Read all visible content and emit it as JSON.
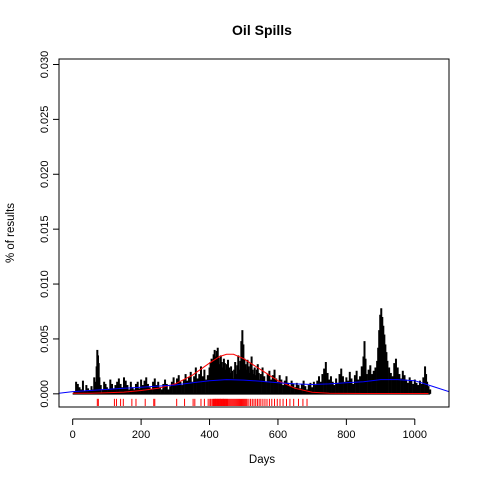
{
  "chart_data": {
    "type": "bar",
    "title": "Oil Spills",
    "xlabel": "Days",
    "ylabel": "% of results",
    "xlim": [
      -40,
      1100
    ],
    "ylim": [
      -0.0012,
      0.0305
    ],
    "x_ticks": [
      0,
      200,
      400,
      600,
      800,
      1000
    ],
    "x_tick_labels": [
      "0",
      "200",
      "400",
      "600",
      "800",
      "1000"
    ],
    "y_ticks": [
      0.0,
      0.005,
      0.01,
      0.015,
      0.02,
      0.025,
      0.03
    ],
    "y_tick_labels": [
      "0.000",
      "0.005",
      "0.010",
      "0.015",
      "0.020",
      "0.025",
      "0.030"
    ],
    "grid": false,
    "legend": "none",
    "colors": {
      "bars": "#000000",
      "red_curve": "#ff0000",
      "blue_curve": "#0000ff",
      "rug": "#ff0000"
    },
    "series": [
      {
        "kind": "spikes",
        "color": "#000000",
        "points": [
          [
            5,
            0.0002
          ],
          [
            10,
            0.0011
          ],
          [
            15,
            0.0009
          ],
          [
            20,
            0.0006
          ],
          [
            25,
            0.0004
          ],
          [
            30,
            0.0012
          ],
          [
            35,
            0.0003
          ],
          [
            40,
            0.0008
          ],
          [
            45,
            0.0005
          ],
          [
            50,
            0.0003
          ],
          [
            55,
            0.0007
          ],
          [
            60,
            0.0004
          ],
          [
            63,
            0.0015
          ],
          [
            67,
            0.0011
          ],
          [
            70,
            0.0025
          ],
          [
            72,
            0.004
          ],
          [
            74,
            0.0035
          ],
          [
            76,
            0.0028
          ],
          [
            78,
            0.0015
          ],
          [
            82,
            0.0008
          ],
          [
            88,
            0.0004
          ],
          [
            92,
            0.0011
          ],
          [
            96,
            0.0009
          ],
          [
            100,
            0.0006
          ],
          [
            105,
            0.0004
          ],
          [
            110,
            0.0013
          ],
          [
            115,
            0.0009
          ],
          [
            120,
            0.0005
          ],
          [
            125,
            0.0008
          ],
          [
            130,
            0.0011
          ],
          [
            135,
            0.0014
          ],
          [
            140,
            0.0009
          ],
          [
            145,
            0.0006
          ],
          [
            150,
            0.0015
          ],
          [
            155,
            0.0012
          ],
          [
            160,
            0.0008
          ],
          [
            165,
            0.0004
          ],
          [
            170,
            0.0011
          ],
          [
            175,
            0.0006
          ],
          [
            180,
            0.0004
          ],
          [
            185,
            0.0009
          ],
          [
            190,
            0.0011
          ],
          [
            195,
            0.0005
          ],
          [
            200,
            0.0013
          ],
          [
            205,
            0.0008
          ],
          [
            210,
            0.0012
          ],
          [
            215,
            0.0015
          ],
          [
            220,
            0.0009
          ],
          [
            225,
            0.0006
          ],
          [
            230,
            0.0004
          ],
          [
            235,
            0.0011
          ],
          [
            240,
            0.0014
          ],
          [
            245,
            0.0008
          ],
          [
            250,
            0.0011
          ],
          [
            255,
            0.0006
          ],
          [
            260,
            0.0004
          ],
          [
            265,
            0.0009
          ],
          [
            270,
            0.0013
          ],
          [
            275,
            0.0009
          ],
          [
            280,
            0.0004
          ],
          [
            285,
            0.0007
          ],
          [
            290,
            0.0011
          ],
          [
            295,
            0.0015
          ],
          [
            300,
            0.0009
          ],
          [
            305,
            0.0014
          ],
          [
            310,
            0.0017
          ],
          [
            315,
            0.0011
          ],
          [
            320,
            0.0008
          ],
          [
            325,
            0.0013
          ],
          [
            330,
            0.0018
          ],
          [
            335,
            0.0012
          ],
          [
            340,
            0.0015
          ],
          [
            345,
            0.002
          ],
          [
            350,
            0.0011
          ],
          [
            355,
            0.0016
          ],
          [
            360,
            0.0024
          ],
          [
            365,
            0.0014
          ],
          [
            370,
            0.0018
          ],
          [
            375,
            0.0025
          ],
          [
            380,
            0.0016
          ],
          [
            385,
            0.0022
          ],
          [
            390,
            0.0013
          ],
          [
            395,
            0.0017
          ],
          [
            400,
            0.0024
          ],
          [
            403,
            0.0029
          ],
          [
            406,
            0.0032
          ],
          [
            409,
            0.003
          ],
          [
            412,
            0.0036
          ],
          [
            415,
            0.004
          ],
          [
            418,
            0.0034
          ],
          [
            421,
            0.0039
          ],
          [
            424,
            0.0042
          ],
          [
            427,
            0.0033
          ],
          [
            430,
            0.0027
          ],
          [
            433,
            0.0035
          ],
          [
            436,
            0.0029
          ],
          [
            439,
            0.0024
          ],
          [
            442,
            0.0032
          ],
          [
            445,
            0.0028
          ],
          [
            448,
            0.0022
          ],
          [
            451,
            0.0027
          ],
          [
            454,
            0.0031
          ],
          [
            457,
            0.0024
          ],
          [
            460,
            0.0019
          ],
          [
            463,
            0.0025
          ],
          [
            466,
            0.0021
          ],
          [
            469,
            0.0014
          ],
          [
            472,
            0.0022
          ],
          [
            475,
            0.0029
          ],
          [
            478,
            0.0018
          ],
          [
            481,
            0.0026
          ],
          [
            484,
            0.0035
          ],
          [
            487,
            0.0022
          ],
          [
            490,
            0.003
          ],
          [
            493,
            0.0048
          ],
          [
            496,
            0.0058
          ],
          [
            499,
            0.0045
          ],
          [
            502,
            0.0032
          ],
          [
            505,
            0.0027
          ],
          [
            508,
            0.0022
          ],
          [
            511,
            0.0031
          ],
          [
            514,
            0.0025
          ],
          [
            517,
            0.0019
          ],
          [
            520,
            0.0028
          ],
          [
            523,
            0.0034
          ],
          [
            526,
            0.0022
          ],
          [
            529,
            0.0018
          ],
          [
            532,
            0.0024
          ],
          [
            535,
            0.0017
          ],
          [
            538,
            0.0022
          ],
          [
            541,
            0.0027
          ],
          [
            544,
            0.0019
          ],
          [
            547,
            0.0013
          ],
          [
            550,
            0.0018
          ],
          [
            555,
            0.0024
          ],
          [
            560,
            0.0016
          ],
          [
            565,
            0.0011
          ],
          [
            570,
            0.0018
          ],
          [
            575,
            0.0021
          ],
          [
            580,
            0.0013
          ],
          [
            585,
            0.0017
          ],
          [
            590,
            0.0022
          ],
          [
            595,
            0.0014
          ],
          [
            600,
            0.0011
          ],
          [
            605,
            0.0017
          ],
          [
            610,
            0.0013
          ],
          [
            615,
            0.0008
          ],
          [
            620,
            0.0012
          ],
          [
            625,
            0.0016
          ],
          [
            630,
            0.001
          ],
          [
            635,
            0.0007
          ],
          [
            640,
            0.0012
          ],
          [
            645,
            0.0009
          ],
          [
            650,
            0.0006
          ],
          [
            655,
            0.001
          ],
          [
            660,
            0.0008
          ],
          [
            665,
            0.0005
          ],
          [
            670,
            0.0009
          ],
          [
            675,
            0.0012
          ],
          [
            680,
            0.0007
          ],
          [
            685,
            0.0004
          ],
          [
            690,
            0.0008
          ],
          [
            695,
            0.001
          ],
          [
            700,
            0.0006
          ],
          [
            705,
            0.0011
          ],
          [
            710,
            0.0008
          ],
          [
            715,
            0.0012
          ],
          [
            720,
            0.0016
          ],
          [
            725,
            0.0011
          ],
          [
            730,
            0.0018
          ],
          [
            735,
            0.0023
          ],
          [
            740,
            0.0029
          ],
          [
            745,
            0.0019
          ],
          [
            750,
            0.0013
          ],
          [
            755,
            0.0016
          ],
          [
            760,
            0.0011
          ],
          [
            765,
            0.0008
          ],
          [
            770,
            0.0014
          ],
          [
            775,
            0.001
          ],
          [
            780,
            0.0018
          ],
          [
            785,
            0.0023
          ],
          [
            790,
            0.0016
          ],
          [
            795,
            0.0011
          ],
          [
            800,
            0.0015
          ],
          [
            805,
            0.0012
          ],
          [
            810,
            0.002
          ],
          [
            815,
            0.0014
          ],
          [
            820,
            0.0009
          ],
          [
            825,
            0.0017
          ],
          [
            830,
            0.0021
          ],
          [
            835,
            0.0013
          ],
          [
            840,
            0.0016
          ],
          [
            845,
            0.0025
          ],
          [
            850,
            0.0034
          ],
          [
            853,
            0.0048
          ],
          [
            856,
            0.0032
          ],
          [
            860,
            0.0018
          ],
          [
            865,
            0.0022
          ],
          [
            870,
            0.0026
          ],
          [
            875,
            0.0018
          ],
          [
            880,
            0.0021
          ],
          [
            885,
            0.0024
          ],
          [
            890,
            0.003
          ],
          [
            893,
            0.0042
          ],
          [
            896,
            0.0058
          ],
          [
            899,
            0.0072
          ],
          [
            902,
            0.0078
          ],
          [
            905,
            0.007
          ],
          [
            908,
            0.0062
          ],
          [
            911,
            0.0054
          ],
          [
            914,
            0.0045
          ],
          [
            917,
            0.0038
          ],
          [
            920,
            0.003
          ],
          [
            925,
            0.0024
          ],
          [
            930,
            0.0019
          ],
          [
            935,
            0.0016
          ],
          [
            940,
            0.0028
          ],
          [
            945,
            0.0032
          ],
          [
            950,
            0.0024
          ],
          [
            955,
            0.0018
          ],
          [
            960,
            0.0014
          ],
          [
            965,
            0.0021
          ],
          [
            970,
            0.0017
          ],
          [
            975,
            0.0013
          ],
          [
            980,
            0.001
          ],
          [
            985,
            0.0015
          ],
          [
            990,
            0.0012
          ],
          [
            995,
            0.0009
          ],
          [
            1000,
            0.0013
          ],
          [
            1005,
            0.001
          ],
          [
            1010,
            0.0008
          ],
          [
            1015,
            0.0012
          ],
          [
            1020,
            0.0009
          ],
          [
            1025,
            0.0015
          ],
          [
            1030,
            0.0025
          ],
          [
            1033,
            0.0018
          ],
          [
            1036,
            0.0011
          ],
          [
            1040,
            0.0007
          ],
          [
            1045,
            0.0004
          ]
        ]
      },
      {
        "kind": "line",
        "color": "#ff0000",
        "points": [
          [
            0,
            5e-05
          ],
          [
            50,
            6e-05
          ],
          [
            100,
            9e-05
          ],
          [
            150,
            0.00016
          ],
          [
            200,
            0.0003
          ],
          [
            250,
            0.0005
          ],
          [
            300,
            0.0009
          ],
          [
            350,
            0.0017
          ],
          [
            400,
            0.0028
          ],
          [
            430,
            0.0034
          ],
          [
            450,
            0.0036
          ],
          [
            470,
            0.0036
          ],
          [
            500,
            0.0032
          ],
          [
            550,
            0.0022
          ],
          [
            600,
            0.0012
          ],
          [
            650,
            0.0005
          ],
          [
            700,
            0.00015
          ],
          [
            750,
            6e-05
          ],
          [
            800,
            4e-05
          ],
          [
            850,
            3e-05
          ],
          [
            900,
            3e-05
          ],
          [
            950,
            3e-05
          ],
          [
            1000,
            3e-05
          ],
          [
            1040,
            3e-05
          ]
        ]
      },
      {
        "kind": "line",
        "color": "#0000ff",
        "points": [
          [
            -40,
            5e-05
          ],
          [
            0,
            0.0002
          ],
          [
            50,
            0.0003
          ],
          [
            100,
            0.0004
          ],
          [
            150,
            0.0005
          ],
          [
            200,
            0.0006
          ],
          [
            250,
            0.0007
          ],
          [
            300,
            0.0008
          ],
          [
            350,
            0.001
          ],
          [
            400,
            0.0012
          ],
          [
            450,
            0.0013
          ],
          [
            500,
            0.00125
          ],
          [
            550,
            0.00115
          ],
          [
            600,
            0.001
          ],
          [
            650,
            0.0009
          ],
          [
            700,
            0.00085
          ],
          [
            750,
            0.0009
          ],
          [
            800,
            0.001
          ],
          [
            850,
            0.0011
          ],
          [
            900,
            0.0013
          ],
          [
            950,
            0.0013
          ],
          [
            1000,
            0.0012
          ],
          [
            1050,
            0.0007
          ],
          [
            1100,
            0.0002
          ]
        ]
      }
    ],
    "rug": [
      72,
      75,
      122,
      128,
      140,
      148,
      173,
      185,
      212,
      237,
      240,
      304,
      327,
      352,
      357,
      375,
      385,
      396,
      401,
      404,
      408,
      411,
      413,
      415,
      417,
      418,
      420,
      422,
      424,
      425,
      427,
      429,
      431,
      432,
      434,
      436,
      438,
      440,
      441,
      443,
      445,
      447,
      449,
      451,
      453,
      456,
      459,
      462,
      465,
      468,
      471,
      474,
      477,
      480,
      483,
      486,
      489,
      492,
      495,
      498,
      501,
      504,
      507,
      510,
      515,
      520,
      525,
      530,
      535,
      540,
      545,
      550,
      556,
      562,
      568,
      575,
      582,
      590,
      598,
      606,
      615,
      625,
      635,
      646,
      660,
      673,
      685
    ]
  }
}
